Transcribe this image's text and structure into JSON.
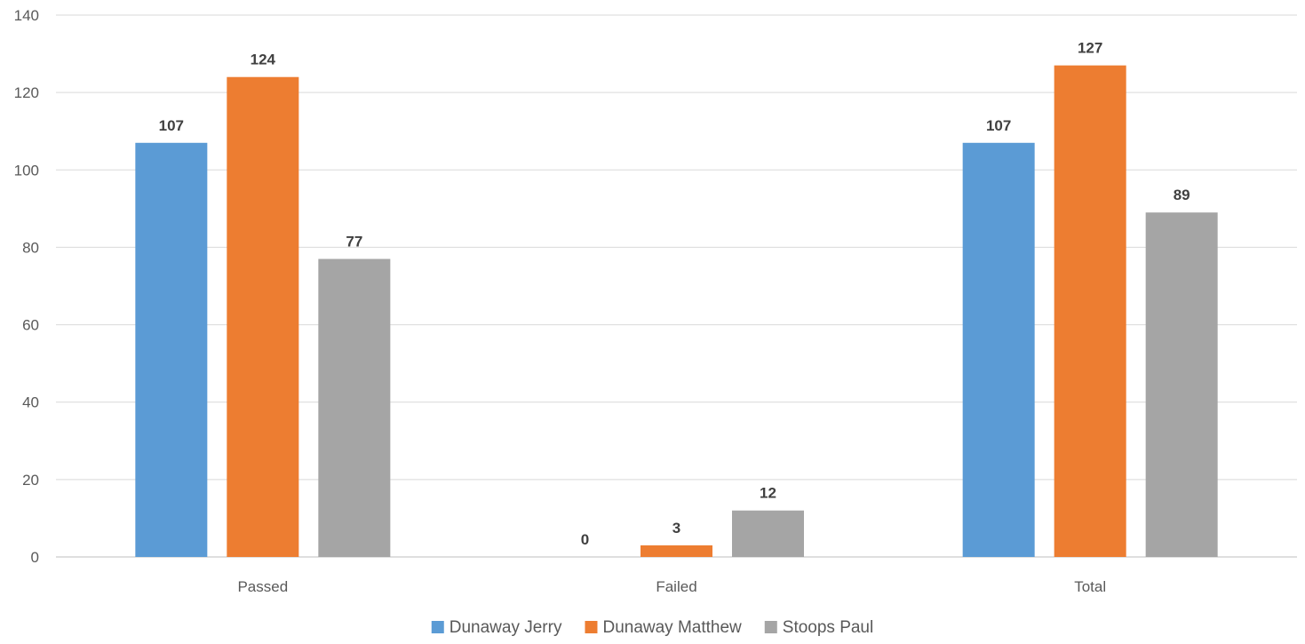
{
  "chart_data": {
    "type": "bar",
    "categories": [
      "Passed",
      "Failed",
      "Total"
    ],
    "series": [
      {
        "name": "Dunaway Jerry",
        "color": "#5B9BD5",
        "values": [
          107,
          0,
          107
        ]
      },
      {
        "name": "Dunaway Matthew",
        "color": "#ED7D31",
        "values": [
          124,
          3,
          127
        ]
      },
      {
        "name": "Stoops Paul",
        "color": "#A5A5A5",
        "values": [
          77,
          12,
          89
        ]
      }
    ],
    "ylim": [
      0,
      140
    ],
    "yticks": [
      0,
      20,
      40,
      60,
      80,
      100,
      120,
      140
    ],
    "grid": true,
    "legend_position": "bottom",
    "data_labels": true
  }
}
